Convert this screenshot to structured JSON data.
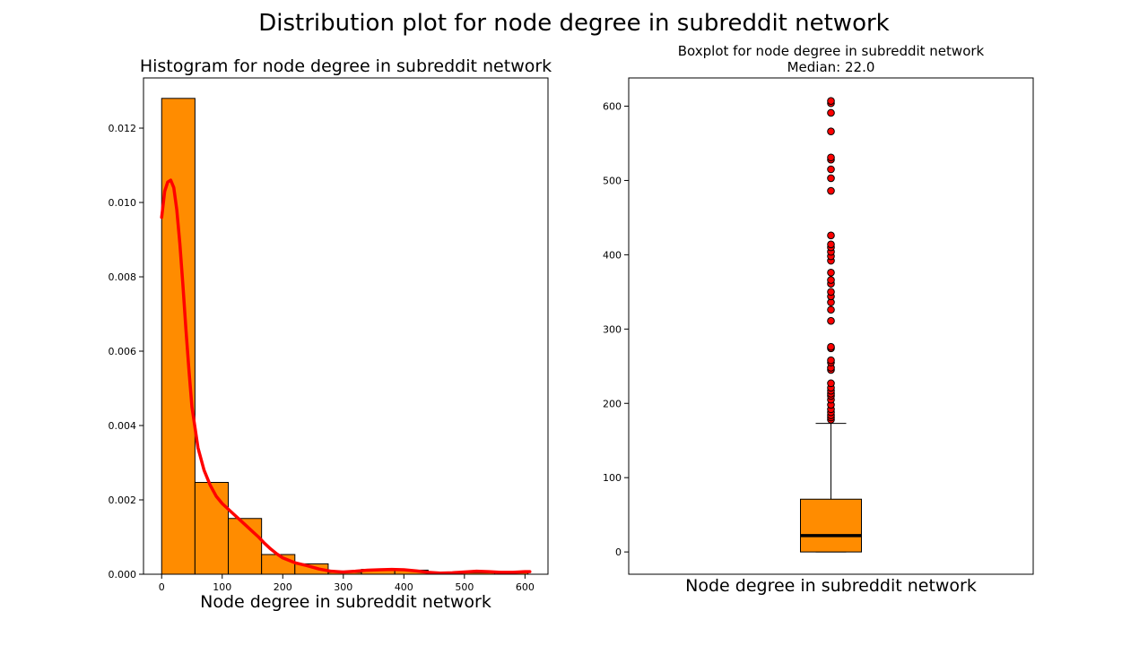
{
  "figure": {
    "title": "Distribution plot for node degree in subreddit network"
  },
  "chart_data": [
    {
      "type": "bar",
      "subtype": "histogram",
      "title": "Histogram for node degree in subreddit network",
      "xlabel": "Node degree in subreddit network",
      "ylabel": "",
      "xlim": [
        -30,
        638
      ],
      "ylim": [
        0,
        0.01335
      ],
      "x_ticks": [
        0,
        100,
        200,
        300,
        400,
        500,
        600
      ],
      "x_tick_labels": [
        "0",
        "100",
        "200",
        "300",
        "400",
        "500",
        "600"
      ],
      "y_ticks": [
        0,
        0.002,
        0.004,
        0.006,
        0.008,
        0.01,
        0.012
      ],
      "y_tick_labels": [
        "0.000",
        "0.002",
        "0.004",
        "0.006",
        "0.008",
        "0.010",
        "0.012"
      ],
      "bins": [
        {
          "x0": 0,
          "x1": 55,
          "value": 0.0128
        },
        {
          "x0": 55,
          "x1": 110,
          "value": 0.00247
        },
        {
          "x0": 110,
          "x1": 165,
          "value": 0.0015
        },
        {
          "x0": 165,
          "x1": 220,
          "value": 0.00053
        },
        {
          "x0": 220,
          "x1": 275,
          "value": 0.00028
        },
        {
          "x0": 275,
          "x1": 330,
          "value": 5e-05
        },
        {
          "x0": 330,
          "x1": 385,
          "value": 0.00013
        },
        {
          "x0": 385,
          "x1": 440,
          "value": 0.00011
        },
        {
          "x0": 440,
          "x1": 495,
          "value": 0.0
        },
        {
          "x0": 495,
          "x1": 550,
          "value": 4e-05
        },
        {
          "x0": 550,
          "x1": 605,
          "value": 6e-05
        }
      ],
      "kde": {
        "x": [
          0,
          5,
          10,
          15,
          20,
          25,
          30,
          35,
          40,
          45,
          50,
          60,
          70,
          80,
          90,
          100,
          110,
          120,
          130,
          140,
          150,
          160,
          170,
          180,
          190,
          200,
          220,
          240,
          260,
          280,
          300,
          320,
          340,
          360,
          380,
          400,
          420,
          440,
          460,
          480,
          500,
          520,
          540,
          560,
          580,
          600,
          608
        ],
        "y": [
          0.0096,
          0.0103,
          0.01055,
          0.0106,
          0.0104,
          0.0098,
          0.0089,
          0.0078,
          0.0066,
          0.0055,
          0.0045,
          0.0034,
          0.0028,
          0.0024,
          0.0021,
          0.0019,
          0.00175,
          0.0016,
          0.00145,
          0.0013,
          0.00115,
          0.001,
          0.00083,
          0.00068,
          0.00055,
          0.00044,
          0.00031,
          0.00023,
          0.00014,
          8e-05,
          6e-05,
          8e-05,
          0.00011,
          0.00012,
          0.00013,
          0.00012,
          9e-05,
          5e-05,
          3e-05,
          4e-05,
          6e-05,
          8e-05,
          7e-05,
          5e-05,
          5e-05,
          7e-05,
          7e-05
        ]
      },
      "colors": {
        "bar_fill": "#ff8c00",
        "bar_edge": "#000000",
        "kde_line": "#ff0000"
      }
    },
    {
      "type": "boxplot",
      "title": "Boxplot for node degree in subreddit network",
      "subtitle": "Median: 22.0",
      "xlabel": "Node degree in subreddit network",
      "ylabel": "",
      "ylim": [
        -30,
        638
      ],
      "y_ticks": [
        0,
        100,
        200,
        300,
        400,
        500,
        600
      ],
      "y_tick_labels": [
        "0",
        "100",
        "200",
        "300",
        "400",
        "500",
        "600"
      ],
      "box": {
        "min": 0,
        "q1": 0,
        "median": 22.0,
        "q3": 71,
        "whisker_high": 173
      },
      "outliers": [
        178,
        181,
        184,
        188,
        192,
        198,
        205,
        210,
        213,
        217,
        221,
        227,
        245,
        248,
        255,
        258,
        274,
        276,
        311,
        326,
        336,
        344,
        350,
        361,
        366,
        376,
        392,
        398,
        404,
        410,
        414,
        426,
        486,
        503,
        515,
        528,
        531,
        566,
        591,
        604,
        607
      ],
      "colors": {
        "box_fill": "#ff8c00",
        "median_line": "#000000",
        "outlier_fill": "#ff0000",
        "outlier_edge": "#000000"
      }
    }
  ]
}
